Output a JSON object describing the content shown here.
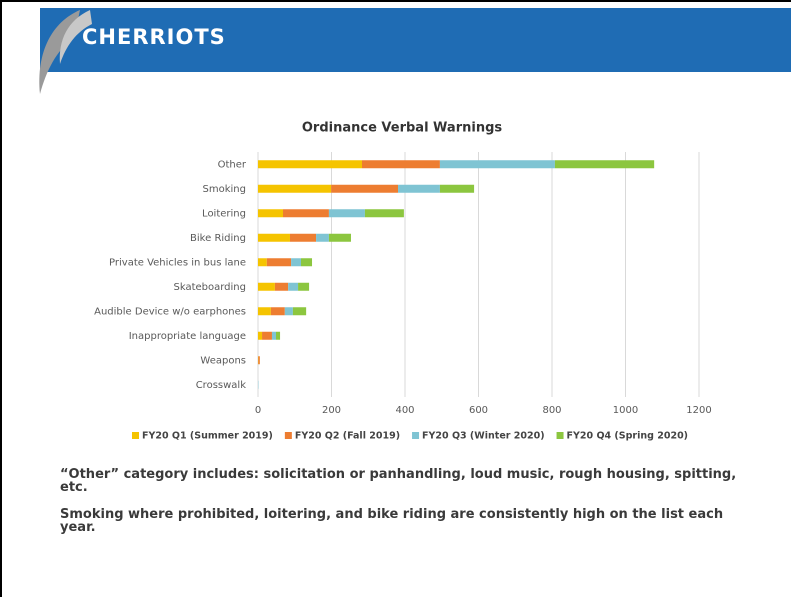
{
  "header": {
    "logo": "CHERRIOTS"
  },
  "chart_data": {
    "type": "stacked_barh",
    "title": "Ordinance Verbal Warnings",
    "categories": [
      "Other",
      "Smoking",
      "Loitering",
      "Bike Riding",
      "Private Vehicles in bus lane",
      "Skateboarding",
      "Audible Device w/o earphones",
      "Inappropriate language",
      "Weapons",
      "Crosswalk"
    ],
    "series": [
      {
        "name": "FY20 Q1 (Summer 2019)",
        "color": "#f5c400",
        "values": [
          283,
          199,
          68,
          87,
          24,
          46,
          35,
          11,
          1,
          0
        ]
      },
      {
        "name": "FY20 Q2 (Fall 2019)",
        "color": "#ed7d31",
        "values": [
          212,
          182,
          125,
          71,
          66,
          36,
          38,
          27,
          4,
          0
        ]
      },
      {
        "name": "FY20 Q3 (Winter 2020)",
        "color": "#7fc4d3",
        "values": [
          313,
          114,
          98,
          35,
          27,
          27,
          22,
          11,
          0,
          1
        ]
      },
      {
        "name": "FY20 Q4 (Spring 2020)",
        "color": "#8cc63f",
        "values": [
          270,
          93,
          106,
          60,
          30,
          30,
          36,
          11,
          0,
          0
        ]
      }
    ],
    "xlim": [
      0,
      1200
    ],
    "xticks": [
      0,
      200,
      400,
      600,
      800,
      1000,
      1200
    ],
    "grid": true,
    "legend": "bottom"
  },
  "notes": [
    "“Other” category includes: solicitation or panhandling, loud music, rough housing, spitting, etc.",
    "Smoking where prohibited, loitering, and bike riding are consistently high on the list each year."
  ]
}
